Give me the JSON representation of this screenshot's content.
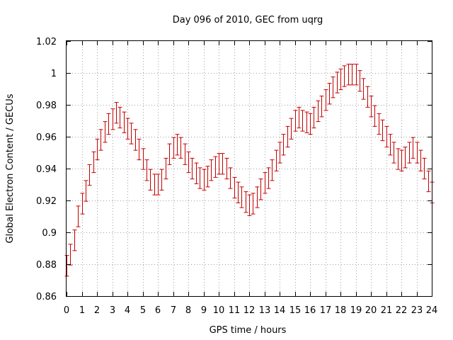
{
  "chart_data": {
    "type": "scatter",
    "title": "Day 096 of 2010, GEC from uqrg",
    "xlabel": "GPS time / hours",
    "ylabel": "Global Electron Content / GECUs",
    "xlim": [
      0,
      24
    ],
    "ylim": [
      0.86,
      1.02
    ],
    "grid": true,
    "marker": "errorbar",
    "colors": {
      "series": "#c00000",
      "grid": "#a0a0a0",
      "frame": "#000000"
    },
    "x_ticks": [
      "0",
      "1",
      "2",
      "3",
      "4",
      "5",
      "6",
      "7",
      "8",
      "9",
      "10",
      "11",
      "12",
      "13",
      "14",
      "15",
      "16",
      "17",
      "18",
      "19",
      "20",
      "21",
      "22",
      "23",
      "24"
    ],
    "y_ticks": [
      "0.86",
      "0.88",
      "0.9",
      "0.92",
      "0.94",
      "0.96",
      "0.98",
      "1",
      "1.02"
    ],
    "x_tick_values": [
      0,
      1,
      2,
      3,
      4,
      5,
      6,
      7,
      8,
      9,
      10,
      11,
      12,
      13,
      14,
      15,
      16,
      17,
      18,
      19,
      20,
      21,
      22,
      23,
      24
    ],
    "y_tick_values": [
      0.86,
      0.88,
      0.9,
      0.92,
      0.94,
      0.96,
      0.98,
      1.0,
      1.02
    ],
    "series": [
      {
        "error": 0.0065,
        "points": [
          [
            0.0,
            0.879
          ],
          [
            0.25,
            0.886
          ],
          [
            0.5,
            0.895
          ],
          [
            0.75,
            0.91
          ],
          [
            1.0,
            0.918
          ],
          [
            1.25,
            0.926
          ],
          [
            1.5,
            0.936
          ],
          [
            1.75,
            0.944
          ],
          [
            2.0,
            0.952
          ],
          [
            2.25,
            0.958
          ],
          [
            2.5,
            0.963
          ],
          [
            2.75,
            0.968
          ],
          [
            3.0,
            0.971
          ],
          [
            3.25,
            0.975
          ],
          [
            3.5,
            0.972
          ],
          [
            3.75,
            0.969
          ],
          [
            4.0,
            0.965
          ],
          [
            4.25,
            0.962
          ],
          [
            4.5,
            0.958
          ],
          [
            4.75,
            0.952
          ],
          [
            5.0,
            0.946
          ],
          [
            5.25,
            0.939
          ],
          [
            5.5,
            0.933
          ],
          [
            5.75,
            0.93
          ],
          [
            6.0,
            0.93
          ],
          [
            6.25,
            0.933
          ],
          [
            6.5,
            0.94
          ],
          [
            6.75,
            0.949
          ],
          [
            7.0,
            0.953
          ],
          [
            7.25,
            0.955
          ],
          [
            7.5,
            0.953
          ],
          [
            7.75,
            0.949
          ],
          [
            8.0,
            0.944
          ],
          [
            8.25,
            0.94
          ],
          [
            8.5,
            0.937
          ],
          [
            8.75,
            0.934
          ],
          [
            9.0,
            0.933
          ],
          [
            9.25,
            0.935
          ],
          [
            9.5,
            0.939
          ],
          [
            9.75,
            0.941
          ],
          [
            10.0,
            0.943
          ],
          [
            10.25,
            0.943
          ],
          [
            10.5,
            0.94
          ],
          [
            10.75,
            0.934
          ],
          [
            11.0,
            0.928
          ],
          [
            11.25,
            0.925
          ],
          [
            11.5,
            0.922
          ],
          [
            11.75,
            0.919
          ],
          [
            12.0,
            0.917
          ],
          [
            12.25,
            0.918
          ],
          [
            12.5,
            0.922
          ],
          [
            12.75,
            0.927
          ],
          [
            13.0,
            0.931
          ],
          [
            13.25,
            0.934
          ],
          [
            13.5,
            0.939
          ],
          [
            13.75,
            0.945
          ],
          [
            14.0,
            0.95
          ],
          [
            14.25,
            0.955
          ],
          [
            14.5,
            0.96
          ],
          [
            14.75,
            0.965
          ],
          [
            15.0,
            0.97
          ],
          [
            15.25,
            0.972
          ],
          [
            15.5,
            0.97
          ],
          [
            15.75,
            0.969
          ],
          [
            16.0,
            0.968
          ],
          [
            16.25,
            0.972
          ],
          [
            16.5,
            0.976
          ],
          [
            16.75,
            0.979
          ],
          [
            17.0,
            0.983
          ],
          [
            17.25,
            0.987
          ],
          [
            17.5,
            0.991
          ],
          [
            17.75,
            0.994
          ],
          [
            18.0,
            0.996
          ],
          [
            18.25,
            0.998
          ],
          [
            18.5,
            0.999
          ],
          [
            18.75,
            0.999
          ],
          [
            19.0,
            0.999
          ],
          [
            19.25,
            0.995
          ],
          [
            19.5,
            0.99
          ],
          [
            19.75,
            0.985
          ],
          [
            20.0,
            0.979
          ],
          [
            20.25,
            0.973
          ],
          [
            20.5,
            0.968
          ],
          [
            20.75,
            0.964
          ],
          [
            21.0,
            0.96
          ],
          [
            21.25,
            0.955
          ],
          [
            21.5,
            0.95
          ],
          [
            21.75,
            0.946
          ],
          [
            22.0,
            0.945
          ],
          [
            22.25,
            0.947
          ],
          [
            22.5,
            0.95
          ],
          [
            22.75,
            0.953
          ],
          [
            23.0,
            0.95
          ],
          [
            23.25,
            0.945
          ],
          [
            23.5,
            0.94
          ],
          [
            23.75,
            0.932
          ],
          [
            24.0,
            0.925
          ]
        ]
      }
    ]
  }
}
